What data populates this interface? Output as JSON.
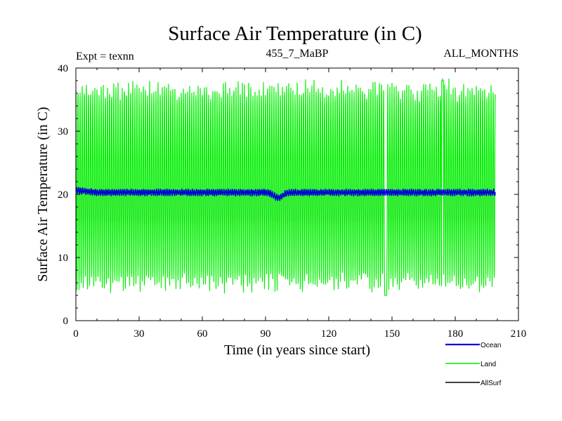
{
  "chart_data": {
    "type": "line",
    "title": "Surface Air Temperature (in C)",
    "subtitle_left": "Expt = texnn",
    "subtitle_center": "455_7_MaBP",
    "subtitle_right": "ALL_MONTHS",
    "xlabel": "Time (in years since start)",
    "ylabel": "Surface Air Temperature (in C)",
    "xlim": [
      0,
      210
    ],
    "ylim": [
      0,
      40
    ],
    "xticks": [
      0,
      30,
      60,
      90,
      120,
      150,
      180,
      210
    ],
    "yticks": [
      0,
      10,
      20,
      30,
      40
    ],
    "x_end": 199,
    "series": [
      {
        "name": "Land",
        "color": "#00ee00",
        "style": "monthly seasonal oscillation",
        "summer_peak_approx": 36.5,
        "winter_trough_approx": 6.0,
        "overall_max_approx": 38.0,
        "overall_min_approx": 4.0
      },
      {
        "name": "Ocean",
        "color": "#0000dd",
        "style": "monthly, weak seasonal cycle",
        "mean_approx": 20.3,
        "seasonal_amplitude_approx": 0.4,
        "min_dip": {
          "x": 96,
          "y": 19.5
        }
      },
      {
        "name": "AllSurf",
        "color": "#000000",
        "style": "mostly hidden beneath Land"
      }
    ],
    "legend": {
      "placement": "below-right",
      "entries": [
        {
          "label": "Ocean",
          "color": "#0000dd"
        },
        {
          "label": "Land",
          "color": "#00ee00"
        },
        {
          "label": "AllSurf",
          "color": "#000000"
        }
      ]
    }
  }
}
